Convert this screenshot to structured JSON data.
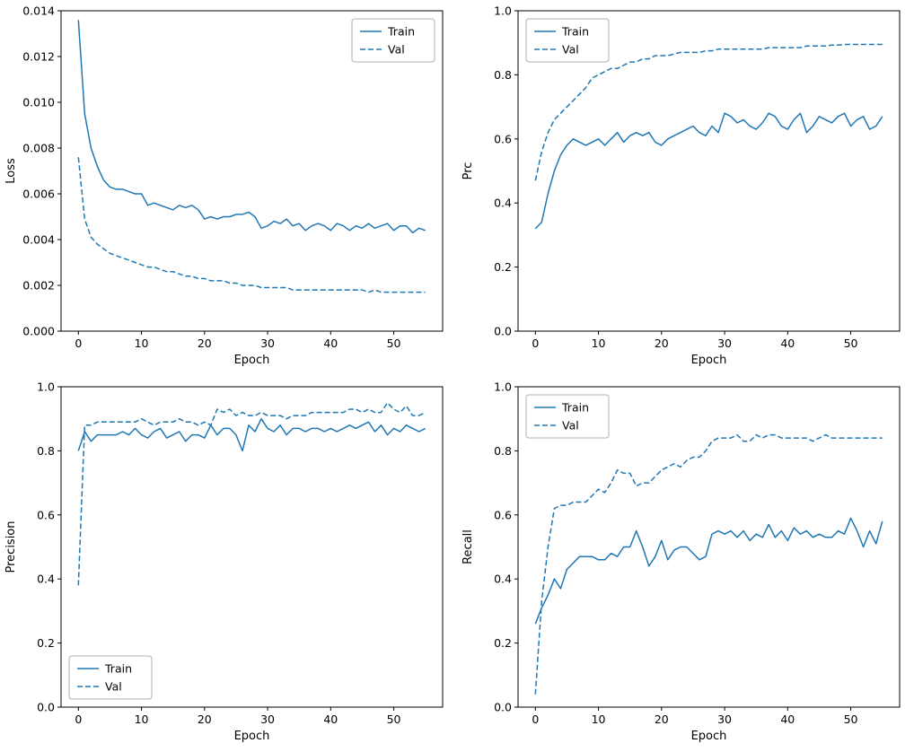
{
  "figure": {
    "background": "#ffffff",
    "line_color": "#1f77b4",
    "frame_color": "#000000",
    "legend_border_color": "#b0b0b0",
    "legend_background": "#ffffff"
  },
  "epochs": [
    0,
    1,
    2,
    3,
    4,
    5,
    6,
    7,
    8,
    9,
    10,
    11,
    12,
    13,
    14,
    15,
    16,
    17,
    18,
    19,
    20,
    21,
    22,
    23,
    24,
    25,
    26,
    27,
    28,
    29,
    30,
    31,
    32,
    33,
    34,
    35,
    36,
    37,
    38,
    39,
    40,
    41,
    42,
    43,
    44,
    45,
    46,
    47,
    48,
    49,
    50,
    51,
    52,
    53,
    54,
    55
  ],
  "chart_data": [
    {
      "type": "line",
      "name": "loss",
      "title": "",
      "xlabel": "Epoch",
      "ylabel": "Loss",
      "xlim": [
        -2.75,
        57.75
      ],
      "ylim": [
        0,
        0.014
      ],
      "xticks": [
        0,
        10,
        20,
        30,
        40,
        50
      ],
      "xtick_labels": [
        "0",
        "10",
        "20",
        "30",
        "40",
        "50"
      ],
      "yticks": [
        0,
        0.002,
        0.004,
        0.006,
        0.008,
        0.01,
        0.012,
        0.014
      ],
      "ytick_labels": [
        "0.000",
        "0.002",
        "0.004",
        "0.006",
        "0.008",
        "0.010",
        "0.012",
        "0.014"
      ],
      "legend": {
        "position": "top-right",
        "entries": [
          {
            "label": "Train",
            "style": "solid"
          },
          {
            "label": "Val",
            "style": "dashed"
          }
        ]
      },
      "series": [
        {
          "name": "Train",
          "style": "solid",
          "values": [
            0.0136,
            0.0095,
            0.008,
            0.0072,
            0.0066,
            0.0063,
            0.0062,
            0.0062,
            0.0061,
            0.006,
            0.006,
            0.0055,
            0.0056,
            0.0055,
            0.0054,
            0.0053,
            0.0055,
            0.0054,
            0.0055,
            0.0053,
            0.0049,
            0.005,
            0.0049,
            0.005,
            0.005,
            0.0051,
            0.0051,
            0.0052,
            0.005,
            0.0045,
            0.0046,
            0.0048,
            0.0047,
            0.0049,
            0.0046,
            0.0047,
            0.0044,
            0.0046,
            0.0047,
            0.0046,
            0.0044,
            0.0047,
            0.0046,
            0.0044,
            0.0046,
            0.0045,
            0.0047,
            0.0045,
            0.0046,
            0.0047,
            0.0044,
            0.0046,
            0.0046,
            0.0043,
            0.0045,
            0.0044
          ]
        },
        {
          "name": "Val",
          "style": "dashed",
          "values": [
            0.0076,
            0.0049,
            0.0041,
            0.0038,
            0.0036,
            0.0034,
            0.0033,
            0.0032,
            0.0031,
            0.003,
            0.0029,
            0.0028,
            0.0028,
            0.0027,
            0.0026,
            0.0026,
            0.0025,
            0.0024,
            0.0024,
            0.0023,
            0.0023,
            0.0022,
            0.0022,
            0.0022,
            0.0021,
            0.0021,
            0.002,
            0.002,
            0.002,
            0.0019,
            0.0019,
            0.0019,
            0.0019,
            0.0019,
            0.0018,
            0.0018,
            0.0018,
            0.0018,
            0.0018,
            0.0018,
            0.0018,
            0.0018,
            0.0018,
            0.0018,
            0.0018,
            0.0018,
            0.0017,
            0.0018,
            0.0017,
            0.0017,
            0.0017,
            0.0017,
            0.0017,
            0.0017,
            0.0017,
            0.0017
          ]
        }
      ]
    },
    {
      "type": "line",
      "name": "prc",
      "title": "",
      "xlabel": "Epoch",
      "ylabel": "Prc",
      "xlim": [
        -2.75,
        57.75
      ],
      "ylim": [
        0,
        1
      ],
      "xticks": [
        0,
        10,
        20,
        30,
        40,
        50
      ],
      "xtick_labels": [
        "0",
        "10",
        "20",
        "30",
        "40",
        "50"
      ],
      "yticks": [
        0,
        0.2,
        0.4,
        0.6,
        0.8,
        1.0
      ],
      "ytick_labels": [
        "0.0",
        "0.2",
        "0.4",
        "0.6",
        "0.8",
        "1.0"
      ],
      "legend": {
        "position": "top-left",
        "entries": [
          {
            "label": "Train",
            "style": "solid"
          },
          {
            "label": "Val",
            "style": "dashed"
          }
        ]
      },
      "series": [
        {
          "name": "Train",
          "style": "solid",
          "values": [
            0.32,
            0.34,
            0.43,
            0.5,
            0.55,
            0.58,
            0.6,
            0.59,
            0.58,
            0.59,
            0.6,
            0.58,
            0.6,
            0.62,
            0.59,
            0.61,
            0.62,
            0.61,
            0.62,
            0.59,
            0.58,
            0.6,
            0.61,
            0.62,
            0.63,
            0.64,
            0.62,
            0.61,
            0.64,
            0.62,
            0.68,
            0.67,
            0.65,
            0.66,
            0.64,
            0.63,
            0.65,
            0.68,
            0.67,
            0.64,
            0.63,
            0.66,
            0.68,
            0.62,
            0.64,
            0.67,
            0.66,
            0.65,
            0.67,
            0.68,
            0.64,
            0.66,
            0.67,
            0.63,
            0.64,
            0.67
          ]
        },
        {
          "name": "Val",
          "style": "dashed",
          "values": [
            0.47,
            0.56,
            0.62,
            0.66,
            0.68,
            0.7,
            0.72,
            0.74,
            0.76,
            0.79,
            0.8,
            0.81,
            0.82,
            0.82,
            0.83,
            0.84,
            0.84,
            0.85,
            0.85,
            0.86,
            0.86,
            0.86,
            0.865,
            0.87,
            0.87,
            0.87,
            0.87,
            0.875,
            0.875,
            0.88,
            0.88,
            0.88,
            0.88,
            0.88,
            0.88,
            0.88,
            0.88,
            0.885,
            0.885,
            0.885,
            0.885,
            0.885,
            0.885,
            0.89,
            0.89,
            0.89,
            0.89,
            0.893,
            0.893,
            0.895,
            0.895,
            0.895,
            0.895,
            0.895,
            0.895,
            0.895
          ]
        }
      ]
    },
    {
      "type": "line",
      "name": "precision",
      "title": "",
      "xlabel": "Epoch",
      "ylabel": "Precision",
      "xlim": [
        -2.75,
        57.75
      ],
      "ylim": [
        0,
        1
      ],
      "xticks": [
        0,
        10,
        20,
        30,
        40,
        50
      ],
      "xtick_labels": [
        "0",
        "10",
        "20",
        "30",
        "40",
        "50"
      ],
      "yticks": [
        0,
        0.2,
        0.4,
        0.6,
        0.8,
        1.0
      ],
      "ytick_labels": [
        "0.0",
        "0.2",
        "0.4",
        "0.6",
        "0.8",
        "1.0"
      ],
      "legend": {
        "position": "bottom-left",
        "entries": [
          {
            "label": "Train",
            "style": "solid"
          },
          {
            "label": "Val",
            "style": "dashed"
          }
        ]
      },
      "series": [
        {
          "name": "Train",
          "style": "solid",
          "values": [
            0.8,
            0.86,
            0.83,
            0.85,
            0.85,
            0.85,
            0.85,
            0.86,
            0.85,
            0.87,
            0.85,
            0.84,
            0.86,
            0.87,
            0.84,
            0.85,
            0.86,
            0.83,
            0.85,
            0.85,
            0.84,
            0.88,
            0.85,
            0.87,
            0.87,
            0.85,
            0.8,
            0.88,
            0.86,
            0.9,
            0.87,
            0.86,
            0.88,
            0.85,
            0.87,
            0.87,
            0.86,
            0.87,
            0.87,
            0.86,
            0.87,
            0.86,
            0.87,
            0.88,
            0.87,
            0.88,
            0.89,
            0.86,
            0.88,
            0.85,
            0.87,
            0.86,
            0.88,
            0.87,
            0.86,
            0.87
          ]
        },
        {
          "name": "Val",
          "style": "dashed",
          "values": [
            0.38,
            0.88,
            0.88,
            0.89,
            0.89,
            0.89,
            0.89,
            0.89,
            0.89,
            0.89,
            0.9,
            0.89,
            0.88,
            0.89,
            0.89,
            0.89,
            0.9,
            0.89,
            0.89,
            0.88,
            0.89,
            0.88,
            0.93,
            0.92,
            0.93,
            0.91,
            0.92,
            0.91,
            0.91,
            0.92,
            0.91,
            0.91,
            0.91,
            0.9,
            0.91,
            0.91,
            0.91,
            0.92,
            0.92,
            0.92,
            0.92,
            0.92,
            0.92,
            0.93,
            0.93,
            0.92,
            0.93,
            0.92,
            0.92,
            0.95,
            0.93,
            0.92,
            0.94,
            0.91,
            0.91,
            0.92
          ]
        }
      ]
    },
    {
      "type": "line",
      "name": "recall",
      "title": "",
      "xlabel": "Epoch",
      "ylabel": "Recall",
      "xlim": [
        -2.75,
        57.75
      ],
      "ylim": [
        0,
        1
      ],
      "xticks": [
        0,
        10,
        20,
        30,
        40,
        50
      ],
      "xtick_labels": [
        "0",
        "10",
        "20",
        "30",
        "40",
        "50"
      ],
      "yticks": [
        0,
        0.2,
        0.4,
        0.6,
        0.8,
        1.0
      ],
      "ytick_labels": [
        "0.0",
        "0.2",
        "0.4",
        "0.6",
        "0.8",
        "1.0"
      ],
      "legend": {
        "position": "top-left",
        "entries": [
          {
            "label": "Train",
            "style": "solid"
          },
          {
            "label": "Val",
            "style": "dashed"
          }
        ]
      },
      "series": [
        {
          "name": "Train",
          "style": "solid",
          "values": [
            0.26,
            0.31,
            0.35,
            0.4,
            0.37,
            0.43,
            0.45,
            0.47,
            0.47,
            0.47,
            0.46,
            0.46,
            0.48,
            0.47,
            0.5,
            0.5,
            0.55,
            0.5,
            0.44,
            0.47,
            0.52,
            0.46,
            0.49,
            0.5,
            0.5,
            0.48,
            0.46,
            0.47,
            0.54,
            0.55,
            0.54,
            0.55,
            0.53,
            0.55,
            0.52,
            0.54,
            0.53,
            0.57,
            0.53,
            0.55,
            0.52,
            0.56,
            0.54,
            0.55,
            0.53,
            0.54,
            0.53,
            0.53,
            0.55,
            0.54,
            0.59,
            0.55,
            0.5,
            0.55,
            0.51,
            0.58
          ]
        },
        {
          "name": "Val",
          "style": "dashed",
          "values": [
            0.04,
            0.33,
            0.5,
            0.62,
            0.63,
            0.63,
            0.64,
            0.64,
            0.64,
            0.66,
            0.68,
            0.67,
            0.7,
            0.74,
            0.73,
            0.73,
            0.69,
            0.7,
            0.7,
            0.72,
            0.74,
            0.75,
            0.76,
            0.75,
            0.77,
            0.78,
            0.78,
            0.8,
            0.83,
            0.84,
            0.84,
            0.84,
            0.85,
            0.83,
            0.83,
            0.85,
            0.84,
            0.85,
            0.85,
            0.84,
            0.84,
            0.84,
            0.84,
            0.84,
            0.83,
            0.84,
            0.85,
            0.84,
            0.84,
            0.84,
            0.84,
            0.84,
            0.84,
            0.84,
            0.84,
            0.84
          ]
        }
      ]
    }
  ]
}
